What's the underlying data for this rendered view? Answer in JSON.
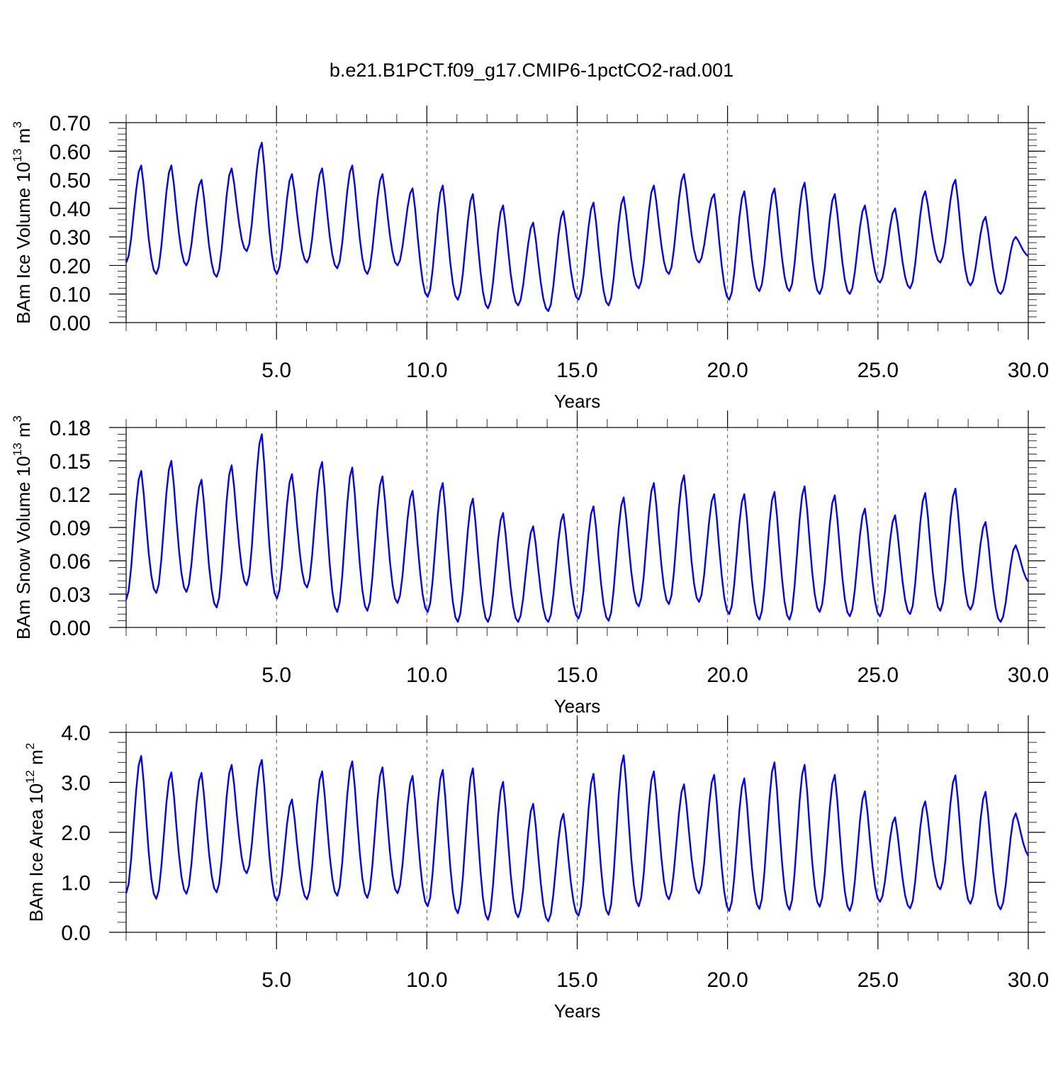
{
  "page_title": "b.e21.B1PCT.f09_g17.CMIP6-1pctCO2-rad.001",
  "colors": {
    "series": "#0000ff",
    "axis": "#000000",
    "grid": "#000000"
  },
  "chart_data": [
    {
      "type": "line",
      "id": "ice-volume",
      "ylabel_main": "BAm Ice Volume 10",
      "ylabel_exp": "13",
      "ylabel_unit": " m",
      "ylabel_unit_exp": "3",
      "xlabel": "Years",
      "xlim": [
        0.0,
        30.0
      ],
      "ylim": [
        0.0,
        0.7
      ],
      "x_ticks": [
        "5.0",
        "10.0",
        "15.0",
        "20.0",
        "25.0",
        "30.0"
      ],
      "y_ticks": [
        "0.00",
        "0.10",
        "0.20",
        "0.30",
        "0.40",
        "0.50",
        "0.60",
        "0.70"
      ],
      "vertical_gridlines": "dashed at 5-year ticks",
      "series": [
        {
          "months_per_year": 12,
          "yearly_cycle": [
            [
              0.21,
              0.55,
              0.17
            ],
            [
              0.17,
              0.55,
              0.2
            ],
            [
              0.2,
              0.5,
              0.16
            ],
            [
              0.16,
              0.54,
              0.25
            ],
            [
              0.25,
              0.63,
              0.17
            ],
            [
              0.17,
              0.52,
              0.21
            ],
            [
              0.21,
              0.54,
              0.19
            ],
            [
              0.19,
              0.55,
              0.17
            ],
            [
              0.17,
              0.52,
              0.2
            ],
            [
              0.2,
              0.47,
              0.09
            ],
            [
              0.09,
              0.48,
              0.08
            ],
            [
              0.08,
              0.45,
              0.05
            ],
            [
              0.05,
              0.41,
              0.06
            ],
            [
              0.06,
              0.35,
              0.04
            ],
            [
              0.04,
              0.39,
              0.08
            ],
            [
              0.08,
              0.42,
              0.06
            ],
            [
              0.06,
              0.44,
              0.12
            ],
            [
              0.12,
              0.48,
              0.17
            ],
            [
              0.17,
              0.52,
              0.21
            ],
            [
              0.21,
              0.45,
              0.08
            ],
            [
              0.08,
              0.46,
              0.11
            ],
            [
              0.11,
              0.47,
              0.11
            ],
            [
              0.11,
              0.49,
              0.1
            ],
            [
              0.1,
              0.45,
              0.1
            ],
            [
              0.1,
              0.41,
              0.14
            ],
            [
              0.14,
              0.4,
              0.12
            ],
            [
              0.12,
              0.46,
              0.21
            ],
            [
              0.21,
              0.5,
              0.13
            ],
            [
              0.13,
              0.37,
              0.1
            ],
            [
              0.1,
              0.3,
              0.23
            ]
          ]
        }
      ]
    },
    {
      "type": "line",
      "id": "snow-volume",
      "ylabel_main": "BAm Snow Volume 10",
      "ylabel_exp": "13",
      "ylabel_unit": " m",
      "ylabel_unit_exp": "3",
      "xlabel": "Years",
      "xlim": [
        0.0,
        30.0
      ],
      "ylim": [
        0.0,
        0.18
      ],
      "x_ticks": [
        "5.0",
        "10.0",
        "15.0",
        "20.0",
        "25.0",
        "30.0"
      ],
      "y_ticks": [
        "0.00",
        "0.03",
        "0.06",
        "0.09",
        "0.12",
        "0.15",
        "0.18"
      ],
      "vertical_gridlines": "dashed at 5-year ticks",
      "series": [
        {
          "months_per_year": 12,
          "yearly_cycle": [
            [
              0.025,
              0.141,
              0.031
            ],
            [
              0.031,
              0.15,
              0.032
            ],
            [
              0.032,
              0.133,
              0.018
            ],
            [
              0.018,
              0.146,
              0.038
            ],
            [
              0.038,
              0.174,
              0.026
            ],
            [
              0.026,
              0.138,
              0.036
            ],
            [
              0.036,
              0.149,
              0.014
            ],
            [
              0.014,
              0.144,
              0.015
            ],
            [
              0.015,
              0.136,
              0.022
            ],
            [
              0.022,
              0.123,
              0.014
            ],
            [
              0.014,
              0.13,
              0.005
            ],
            [
              0.005,
              0.116,
              0.005
            ],
            [
              0.005,
              0.103,
              0.005
            ],
            [
              0.005,
              0.091,
              0.005
            ],
            [
              0.005,
              0.102,
              0.008
            ],
            [
              0.008,
              0.109,
              0.006
            ],
            [
              0.006,
              0.117,
              0.019
            ],
            [
              0.019,
              0.13,
              0.021
            ],
            [
              0.021,
              0.137,
              0.023
            ],
            [
              0.023,
              0.12,
              0.012
            ],
            [
              0.012,
              0.12,
              0.007
            ],
            [
              0.007,
              0.122,
              0.007
            ],
            [
              0.007,
              0.127,
              0.014
            ],
            [
              0.014,
              0.119,
              0.01
            ],
            [
              0.01,
              0.107,
              0.01
            ],
            [
              0.01,
              0.101,
              0.012
            ],
            [
              0.012,
              0.121,
              0.015
            ],
            [
              0.015,
              0.125,
              0.016
            ],
            [
              0.016,
              0.095,
              0.005
            ],
            [
              0.005,
              0.074,
              0.04
            ]
          ]
        }
      ]
    },
    {
      "type": "line",
      "id": "ice-area",
      "ylabel_main": "BAm Ice Area 10",
      "ylabel_exp": "12",
      "ylabel_unit": " m",
      "ylabel_unit_exp": "2",
      "xlabel": "Years",
      "xlim": [
        0.0,
        30.0
      ],
      "ylim": [
        0.0,
        4.0
      ],
      "x_ticks": [
        "5.0",
        "10.0",
        "15.0",
        "20.0",
        "25.0",
        "30.0"
      ],
      "y_ticks": [
        "0.0",
        "1.0",
        "2.0",
        "3.0",
        "4.0"
      ],
      "vertical_gridlines": "dashed at 5-year ticks",
      "series": [
        {
          "months_per_year": 12,
          "yearly_cycle": [
            [
              0.78,
              3.53,
              0.67
            ],
            [
              0.67,
              3.2,
              0.77
            ],
            [
              0.77,
              3.19,
              0.8
            ],
            [
              0.8,
              3.35,
              1.18
            ],
            [
              1.18,
              3.45,
              0.63
            ],
            [
              0.63,
              2.66,
              0.66
            ],
            [
              0.66,
              3.22,
              0.73
            ],
            [
              0.73,
              3.42,
              0.69
            ],
            [
              0.69,
              3.3,
              0.78
            ],
            [
              0.78,
              3.13,
              0.52
            ],
            [
              0.52,
              3.25,
              0.38
            ],
            [
              0.38,
              3.28,
              0.25
            ],
            [
              0.25,
              3.01,
              0.3
            ],
            [
              0.3,
              2.57,
              0.22
            ],
            [
              0.22,
              2.37,
              0.33
            ],
            [
              0.33,
              3.17,
              0.35
            ],
            [
              0.35,
              3.54,
              0.52
            ],
            [
              0.52,
              3.22,
              0.66
            ],
            [
              0.66,
              2.96,
              0.78
            ],
            [
              0.78,
              3.15,
              0.43
            ],
            [
              0.43,
              3.08,
              0.47
            ],
            [
              0.47,
              3.4,
              0.45
            ],
            [
              0.45,
              3.35,
              0.51
            ],
            [
              0.51,
              3.15,
              0.43
            ],
            [
              0.43,
              2.82,
              0.61
            ],
            [
              0.61,
              2.3,
              0.48
            ],
            [
              0.48,
              2.62,
              0.86
            ],
            [
              0.86,
              3.14,
              0.57
            ],
            [
              0.57,
              2.81,
              0.46
            ],
            [
              0.46,
              2.38,
              1.5
            ]
          ]
        }
      ]
    }
  ]
}
